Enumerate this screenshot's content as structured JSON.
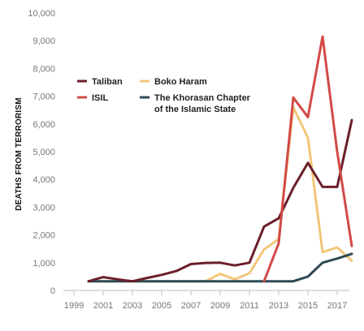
{
  "chart_data": {
    "type": "line",
    "ylabel": "DEATHS FROM TERRORISM",
    "xlabel": "",
    "ylim": [
      0,
      10000
    ],
    "yticks": [
      0,
      1000,
      2000,
      3000,
      4000,
      5000,
      6000,
      7000,
      8000,
      9000,
      10000
    ],
    "ytick_labels": [
      "0",
      "1,000",
      "2,000",
      "3,000",
      "4,000",
      "5,000",
      "6,000",
      "7,000",
      "8,000",
      "9,000",
      "10,000"
    ],
    "xlim": [
      1999,
      2018
    ],
    "xticks": [
      1999,
      2001,
      2003,
      2005,
      2007,
      2009,
      2011,
      2013,
      2015,
      2017
    ],
    "xtick_labels": [
      "1999",
      "2001",
      "2003",
      "2005",
      "2007",
      "2009",
      "2011",
      "2013",
      "2015",
      "2017"
    ],
    "grid": false,
    "legend_position": "top-left",
    "x": [
      2000,
      2001,
      2002,
      2003,
      2004,
      2005,
      2006,
      2007,
      2008,
      2009,
      2010,
      2011,
      2012,
      2013,
      2014,
      2015,
      2016,
      2017,
      2018
    ],
    "series": [
      {
        "name": "Taliban",
        "color": "#6b1f2a",
        "values": [
          330,
          480,
          400,
          330,
          450,
          560,
          700,
          950,
          990,
          1000,
          900,
          1000,
          2300,
          2600,
          3700,
          4600,
          3730,
          3730,
          6140
        ]
      },
      {
        "name": "ISIL",
        "color": "#d24a47",
        "values": [
          null,
          null,
          null,
          null,
          null,
          null,
          null,
          null,
          null,
          null,
          null,
          null,
          330,
          1700,
          6950,
          6250,
          9150,
          5000,
          1600
        ]
      },
      {
        "name": "Boko Haram",
        "color": "#f3c67a",
        "values": [
          330,
          330,
          330,
          330,
          330,
          330,
          330,
          330,
          330,
          600,
          400,
          620,
          1480,
          1850,
          6600,
          5500,
          1380,
          1550,
          1070
        ]
      },
      {
        "name": "The Khorasan Chapter\nof the Islamic State",
        "color": "#2e4a56",
        "values": [
          330,
          330,
          330,
          330,
          330,
          330,
          330,
          330,
          330,
          330,
          330,
          330,
          330,
          330,
          330,
          500,
          1000,
          1150,
          1320
        ]
      }
    ]
  }
}
